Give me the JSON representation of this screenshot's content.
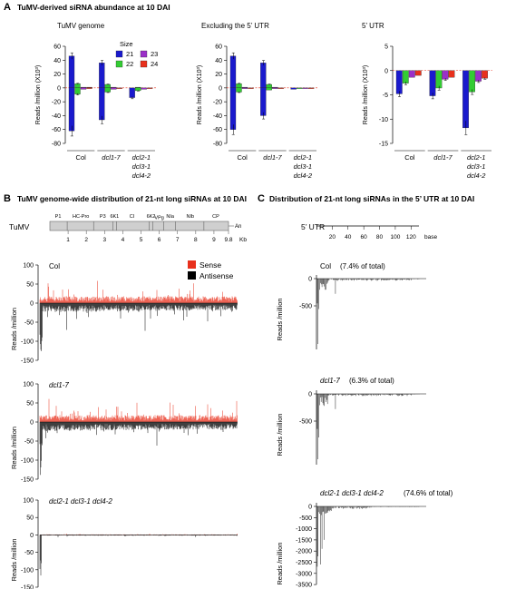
{
  "panel_a": {
    "letter": "A",
    "title": "TuMV-derived siRNA abundance at 10 DAI",
    "legend_title": "Size",
    "legend": [
      {
        "label": "21",
        "color": "#1a1acd"
      },
      {
        "label": "22",
        "color": "#33cc33"
      },
      {
        "label": "23",
        "color": "#9b30c8"
      },
      {
        "label": "24",
        "color": "#e8301c"
      }
    ],
    "ylabel": "Reads /million (X10³)",
    "groups": [
      "Col",
      "dcl1-7",
      "dcl2-1 dcl3-1 dcl4-2"
    ],
    "group_lines": [
      [
        "Col"
      ],
      [
        "dcl1-7"
      ],
      [
        "dcl2-1",
        "dcl3-1",
        "dcl4-2"
      ]
    ],
    "subplots": [
      {
        "title": "TuMV genome",
        "yticks": [
          "60",
          "40",
          "20",
          "0",
          "-20",
          "-40",
          "-60",
          "-80"
        ]
      },
      {
        "title": "Excluding the 5’ UTR",
        "yticks": [
          "60",
          "40",
          "20",
          "0",
          "-20",
          "-40",
          "-60",
          "-80"
        ]
      },
      {
        "title": "5’ UTR",
        "yticks": [
          "5",
          "0",
          "-5",
          "-10",
          "-15"
        ]
      }
    ]
  },
  "chart_data": [
    {
      "type": "bar",
      "title": "TuMV genome",
      "ylabel": "Reads /million (X10³)",
      "ylim": [
        -80,
        60
      ],
      "categories": [
        "Col",
        "dcl1-7",
        "dcl2-1 dcl3-1 dcl4-2"
      ],
      "series": [
        {
          "name": "21",
          "sense": [
            46,
            36,
            0
          ],
          "antisense": [
            -62,
            -46,
            -14
          ]
        },
        {
          "name": "22",
          "sense": [
            6,
            5,
            1
          ],
          "antisense": [
            -9,
            -6,
            -4
          ]
        },
        {
          "name": "23",
          "sense": [
            1,
            1,
            0
          ],
          "antisense": [
            -2,
            -2,
            -2
          ]
        },
        {
          "name": "24",
          "sense": [
            1,
            0,
            0
          ],
          "antisense": [
            -1,
            -1,
            -1
          ]
        }
      ]
    },
    {
      "type": "bar",
      "title": "Excluding the 5’ UTR",
      "ylabel": "Reads /million (X10³)",
      "ylim": [
        -80,
        60
      ],
      "categories": [
        "Col",
        "dcl1-7",
        "dcl2-1 dcl3-1 dcl4-2"
      ],
      "series": [
        {
          "name": "21",
          "sense": [
            46,
            36,
            0
          ],
          "antisense": [
            -60,
            -40,
            -2
          ]
        },
        {
          "name": "22",
          "sense": [
            6,
            5,
            0
          ],
          "antisense": [
            -6,
            -3,
            -1
          ]
        },
        {
          "name": "23",
          "sense": [
            1,
            1,
            0
          ],
          "antisense": [
            -1,
            -1,
            -1
          ]
        },
        {
          "name": "24",
          "sense": [
            0,
            0,
            0
          ],
          "antisense": [
            -1,
            -1,
            -1
          ]
        }
      ]
    },
    {
      "type": "bar",
      "title": "5’ UTR",
      "ylabel": "Reads /million (X10³)",
      "ylim": [
        -15,
        5
      ],
      "categories": [
        "Col",
        "dcl1-7",
        "dcl2-1 dcl3-1 dcl4-2"
      ],
      "series": [
        {
          "name": "21",
          "sense": [
            0,
            0,
            0
          ],
          "antisense": [
            -4.8,
            -5.2,
            -11.8
          ]
        },
        {
          "name": "22",
          "sense": [
            0,
            0,
            0
          ],
          "antisense": [
            -2.6,
            -3.6,
            -4.4
          ]
        },
        {
          "name": "23",
          "sense": [
            0,
            0,
            0
          ],
          "antisense": [
            -1.4,
            -1.8,
            -2.2
          ]
        },
        {
          "name": "24",
          "sense": [
            0,
            0,
            0
          ],
          "antisense": [
            -1.0,
            -1.4,
            -1.6
          ]
        }
      ]
    },
    {
      "type": "bar",
      "title": "TuMV genome-wide distribution of 21-nt long siRNAs at 10 DAI",
      "xlabel": "Kb",
      "ylabel": "Reads /million",
      "xlim": [
        0,
        9.8
      ],
      "series": [
        {
          "name": "Sense",
          "color": "#e8301c"
        },
        {
          "name": "Antisense",
          "color": "#000000"
        }
      ],
      "panels": [
        "Col",
        "dcl1-7",
        "dcl2-1 dcl3-1 dcl4-2"
      ]
    },
    {
      "type": "bar",
      "title": "Distribution of 21-nt long siRNAs in the 5’ UTR at 10 DAI",
      "xlabel": "base",
      "ylabel": "Reads /million",
      "xticks": [
        20,
        40,
        60,
        80,
        100,
        120
      ],
      "panels": [
        {
          "genotype": "Col",
          "note": "(7.4% of total)",
          "yticks": [
            0,
            -500
          ]
        },
        {
          "genotype": "dcl1-7",
          "note": "(6.3% of total)",
          "yticks": [
            0,
            -500
          ]
        },
        {
          "genotype": "dcl2-1 dcl3-1 dcl4-2",
          "note": "(74.6% of total)",
          "yticks": [
            0,
            -500,
            -1000,
            -1500,
            -2000,
            -2500,
            -3000,
            -3500
          ]
        }
      ]
    }
  ],
  "panel_b": {
    "letter": "B",
    "title": "TuMV genome-wide distribution of 21-nt long siRNAs at 10 DAI",
    "virus_label": "TuMV",
    "genes": [
      "P1",
      "HC-Pro",
      "P3",
      "6K1",
      "CI",
      "6K2",
      "VPg",
      "NIa",
      "NIb",
      "CP"
    ],
    "tail": "An",
    "kb_ticks": [
      "1",
      "2",
      "3",
      "4",
      "5",
      "6",
      "7",
      "8",
      "9",
      "9.8"
    ],
    "kb_unit": "Kb",
    "legend": [
      {
        "label": "Sense",
        "color": "#e8301c"
      },
      {
        "label": "Antisense",
        "color": "#000000"
      }
    ],
    "ylabel": "Reads /million",
    "panels": [
      {
        "label": "Col",
        "yticks": [
          "100",
          "50",
          "0",
          "-50",
          "-100",
          "-150"
        ]
      },
      {
        "label": "dcl1-7",
        "yticks": [
          "100",
          "50",
          "0",
          "-50",
          "-100",
          "-150"
        ]
      },
      {
        "label": "dcl2-1 dcl3-1 dcl4-2",
        "yticks": [
          "100",
          "50",
          "0",
          "-50",
          "-100",
          "-150"
        ]
      }
    ]
  },
  "panel_c": {
    "letter": "C",
    "title": "Distribution of 21-nt long siRNAs in the 5’ UTR at 10 DAI",
    "utr_label": "5’ UTR",
    "base_ticks": [
      "20",
      "40",
      "60",
      "80",
      "100",
      "120"
    ],
    "base_unit": "base",
    "ylabel": "Reads /million",
    "panels": [
      {
        "label": "Col",
        "note": "(7.4% of total)",
        "yticks": [
          "0",
          "-500"
        ]
      },
      {
        "label": "dcl1-7",
        "note": "(6.3% of total)",
        "yticks": [
          "0",
          "-500"
        ]
      },
      {
        "label": "dcl2-1 dcl3-1 dcl4-2",
        "note": "(74.6% of total)",
        "yticks": [
          "0",
          "-500",
          "-1000",
          "-1500",
          "-2000",
          "-2500",
          "-3000",
          "-3500"
        ]
      }
    ]
  }
}
